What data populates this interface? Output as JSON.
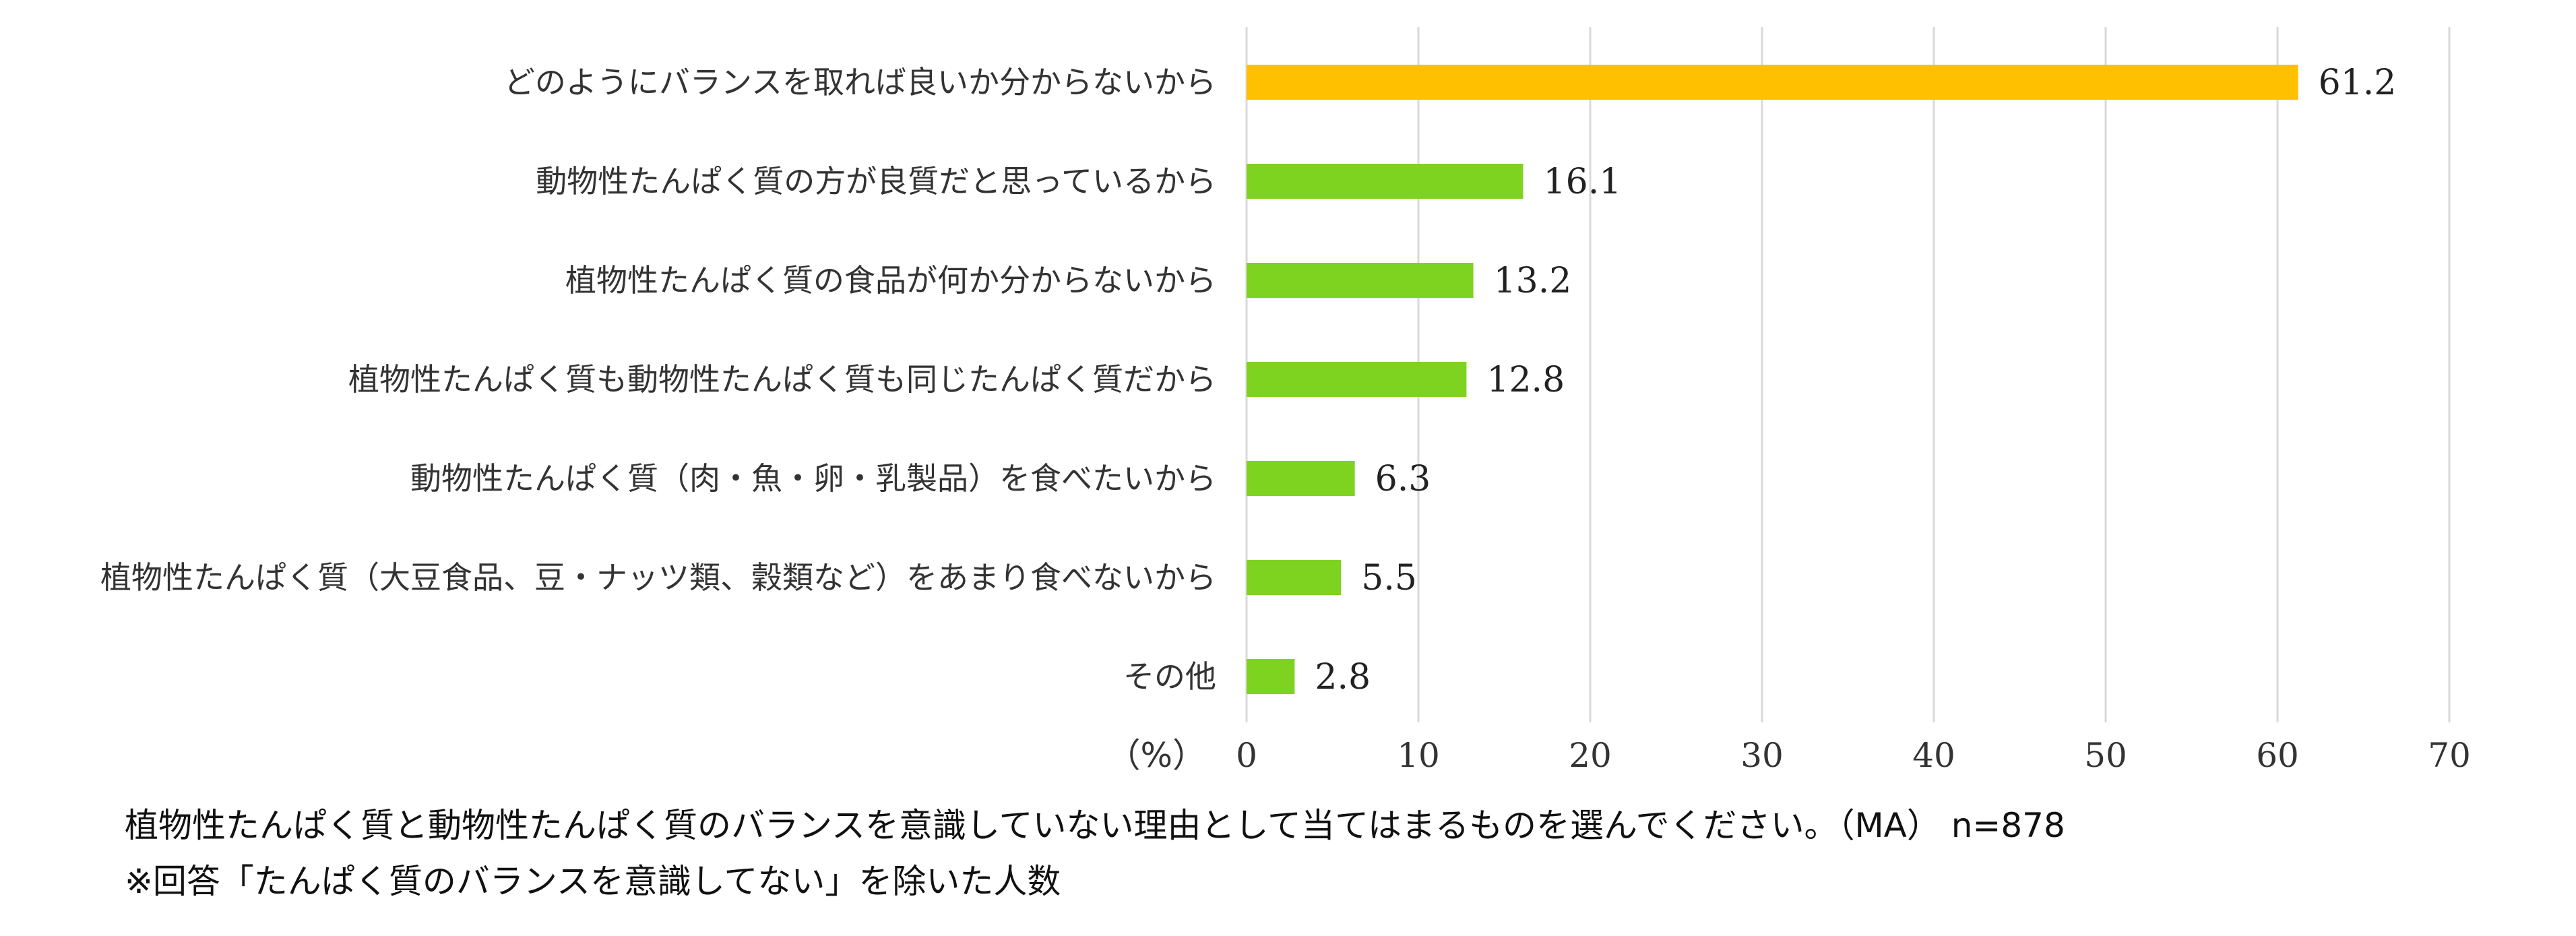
{
  "chart_data": {
    "type": "bar",
    "orientation": "horizontal",
    "categories": [
      "どのようにバランスを取れば良いか分からないから",
      "動物性たんぱく質の方が良質だと思っているから",
      "植物性たんぱく質の食品が何か分からないから",
      "植物性たんぱく質も動物性たんぱく質も同じたんぱく質だから",
      "動物性たんぱく質（肉・魚・卵・乳製品）を食べたいから",
      "植物性たんぱく質（大豆食品、豆・ナッツ類、穀類など）をあまり食べないから",
      "その他"
    ],
    "values": [
      61.2,
      16.1,
      13.2,
      12.8,
      6.3,
      5.5,
      2.8
    ],
    "value_labels": [
      "61.2",
      "16.1",
      "13.2",
      "12.8",
      "6.3",
      "5.5",
      "2.8"
    ],
    "bar_colors": [
      "#FFC000",
      "#7ED321",
      "#7ED321",
      "#7ED321",
      "#7ED321",
      "#7ED321",
      "#7ED321"
    ],
    "xlim": [
      0,
      70
    ],
    "xticks": [
      0,
      10,
      20,
      30,
      40,
      50,
      60,
      70
    ],
    "xtick_labels": [
      "0",
      "10",
      "20",
      "30",
      "40",
      "50",
      "60",
      "70"
    ],
    "unit_label": "（%）",
    "grid": "vertical",
    "grid_color": "#D9D9D9"
  },
  "caption": {
    "line1": "植物性たんぱく質と動物性たんぱく質のバランスを意識していない理由として当てはまるものを選んでください。（MA） n=878",
    "line2": "※回答「たんぱく質のバランスを意識してない」を除いた人数"
  }
}
